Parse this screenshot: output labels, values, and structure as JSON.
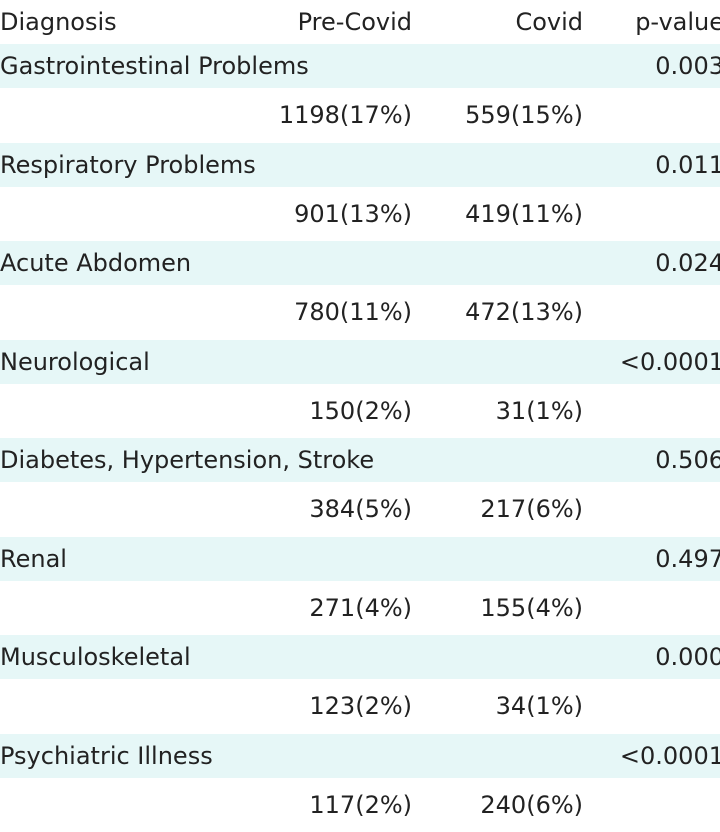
{
  "table": {
    "header": [
      "Diagnosis",
      "Pre-Covid",
      "Covid",
      "p-value"
    ],
    "rows": [
      {
        "diagnosis": "Gastrointestinal Problems",
        "p_value": "0.003",
        "pre_covid": "1198(17%)",
        "covid": "559(15%)"
      },
      {
        "diagnosis": "Respiratory Problems",
        "p_value": "0.011",
        "pre_covid": "901(13%)",
        "covid": "419(11%)"
      },
      {
        "diagnosis": "Acute Abdomen",
        "p_value": "0.024",
        "pre_covid": "780(11%)",
        "covid": "472(13%)"
      },
      {
        "diagnosis": "Neurological",
        "p_value": "<0.0001",
        "pre_covid": "150(2%)",
        "covid": "31(1%)"
      },
      {
        "diagnosis": "Diabetes, Hypertension, Stroke",
        "p_value": "0.506",
        "pre_covid": "384(5%)",
        "covid": "217(6%)"
      },
      {
        "diagnosis": "Renal",
        "p_value": "0.497",
        "pre_covid": "271(4%)",
        "covid": "155(4%)"
      },
      {
        "diagnosis": "Musculoskeletal",
        "p_value": "0.000",
        "pre_covid": "123(2%)",
        "covid": "34(1%)"
      },
      {
        "diagnosis": "Psychiatric Illness",
        "p_value": "<0.0001",
        "pre_covid": "117(2%)",
        "covid": "240(6%)"
      }
    ]
  }
}
